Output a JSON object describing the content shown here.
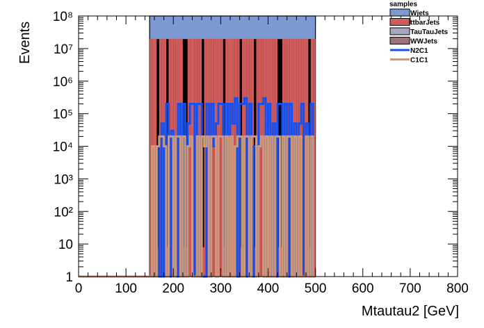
{
  "chart_data": {
    "type": "area",
    "xlabel": "Mtautau2 [GeV]",
    "ylabel": "Events",
    "xlim": [
      0,
      800
    ],
    "ylim": [
      1,
      100000000
    ],
    "yscale": "log",
    "x_ticks": [
      "0",
      "100",
      "200",
      "300",
      "400",
      "500",
      "600",
      "700",
      "800"
    ],
    "y_ticks": [
      "1",
      "10",
      "10²",
      "10³",
      "10⁴",
      "10⁵",
      "10⁶",
      "10⁷",
      "10⁸"
    ],
    "legend": {
      "title": "samples",
      "position": "top-right",
      "entries": [
        {
          "label": "Wjets",
          "kind": "fill",
          "color": "#7d99d1"
        },
        {
          "label": "ttbarJets",
          "kind": "fill",
          "color": "#d05b5b"
        },
        {
          "label": "TauTauJets",
          "kind": "fill",
          "color": "#a6a6c3"
        },
        {
          "label": "WWJets",
          "kind": "fill",
          "color": "#9a7478"
        },
        {
          "label": "N2C1",
          "kind": "line",
          "color": "#1550ee"
        },
        {
          "label": "C1C1",
          "kind": "line",
          "color": "#c99a7b"
        }
      ]
    },
    "bin_width": 5,
    "series": [
      {
        "name": "Wjets",
        "kind": "stacked-fill",
        "color": "#7d99d1",
        "x_start": 150,
        "x_end": 500,
        "values": [
          100000000
        ]
      },
      {
        "name": "ttbarJets",
        "kind": "stacked-fill",
        "color": "#d05b5b",
        "x_start": 150,
        "values": [
          20000000,
          20000000,
          20000000,
          8,
          20000000,
          20000000,
          20000000,
          8,
          20000000,
          20000000,
          20000000,
          20000000,
          20000000,
          20000000,
          8,
          8,
          20000000,
          20000000,
          20000000,
          20000000,
          20000000,
          20000000,
          8,
          20000000,
          20000000,
          20000000,
          20000000,
          20000000,
          20000000,
          20000000,
          20000000,
          8,
          20000000,
          20000000,
          20000000,
          20000000,
          20000000,
          20000000,
          8,
          20000000,
          20000000,
          20000000,
          20000000,
          20000000,
          8,
          20000000,
          20000000,
          20000000,
          20000000,
          20000000,
          20000000,
          20000000,
          20000000,
          20000000,
          8,
          8,
          20000000,
          20000000,
          20000000,
          20000000,
          20000000,
          20000000,
          20000000,
          20000000,
          20000000,
          20000000,
          20000000,
          8,
          20000000,
          20000000
        ]
      },
      {
        "name": "N2C1",
        "kind": "line",
        "color": "#1550ee",
        "x_start": 150,
        "values": [
          1,
          1,
          1,
          10000,
          1,
          50000,
          1,
          200000,
          1,
          30000,
          1,
          1,
          200000,
          1,
          200000,
          1,
          50000,
          200000,
          200000,
          1,
          200000,
          200000,
          1,
          1,
          200000,
          1,
          200000,
          10000,
          50000,
          200000,
          200000,
          1,
          200000,
          1,
          200000,
          50000,
          300000,
          1,
          200000,
          200000,
          300000,
          1,
          200000,
          1,
          10000,
          1,
          200000,
          200000,
          300000,
          1,
          200000,
          1,
          50000,
          1,
          200000,
          200000,
          1,
          200000,
          1,
          200000,
          1,
          50000,
          1,
          50000,
          200000,
          1,
          50000,
          1,
          200000,
          1
        ]
      },
      {
        "name": "C1C1",
        "kind": "line",
        "color": "#c99a7b",
        "x_start": 150,
        "values": [
          1,
          10000,
          1,
          10000,
          20000,
          20000,
          10000,
          1,
          20000,
          20000,
          1,
          20000,
          20000,
          1,
          20000,
          1,
          10000,
          20000,
          1,
          1,
          20000,
          1,
          20000,
          10000,
          20000,
          1,
          20000,
          20000,
          1,
          20000,
          20000,
          1,
          20000,
          1,
          20000,
          1,
          10000,
          20000,
          20000,
          1,
          20000,
          20000,
          1,
          20000,
          20000,
          1,
          10000,
          20000,
          1,
          20000,
          1,
          20000,
          1,
          20000,
          20000,
          1,
          20000,
          1,
          20000,
          20000,
          1,
          20000,
          1,
          20000,
          1,
          1,
          20000,
          1,
          20000,
          1
        ]
      }
    ]
  }
}
